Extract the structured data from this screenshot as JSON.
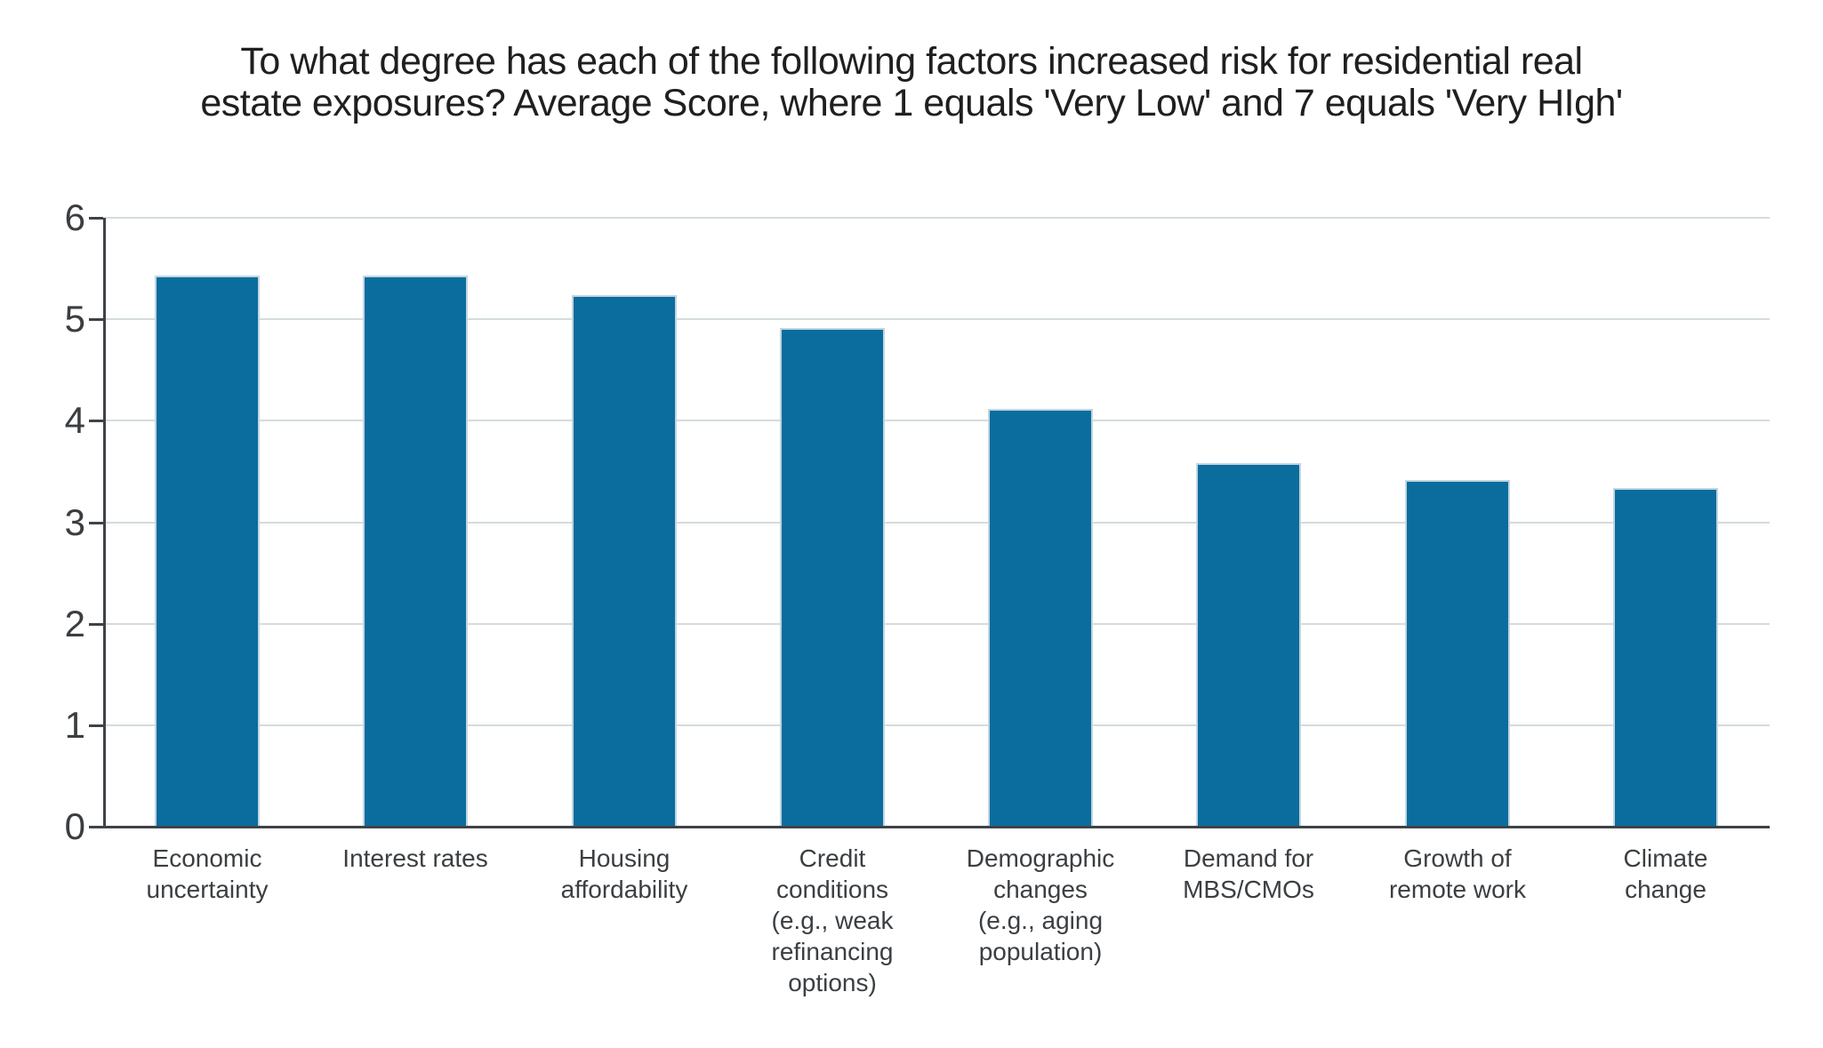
{
  "title": {
    "line1": "To what degree has each of the following factors increased risk for residential real",
    "line2": "estate exposures? Average Score, where 1 equals 'Very Low' and 7 equals 'Very HIgh'"
  },
  "chart_data": {
    "type": "bar",
    "title": "To what degree has each of the following factors increased risk for residential real estate exposures? Average Score, where 1 equals 'Very Low' and 7 equals 'Very HIgh'",
    "categories": [
      "Economic uncertainty",
      "Interest rates",
      "Housing affordability",
      "Credit conditions (e.g., weak refinancing options)",
      "Demographic changes (e.g., aging population)",
      "Demand for MBS/CMOs",
      "Growth of remote work",
      "Climate change"
    ],
    "category_label_lines": [
      "Economic\nuncertainty",
      "Interest rates",
      "Housing\naffordability",
      "Credit\nconditions\n(e.g., weak\nrefinancing\noptions)",
      "Demographic\nchanges\n(e.g., aging\npopulation)",
      "Demand for\nMBS/CMOs",
      "Growth of\nremote work",
      "Climate\nchange"
    ],
    "values": [
      5.43,
      5.43,
      5.24,
      4.91,
      4.12,
      3.58,
      3.42,
      3.34
    ],
    "xlabel": "",
    "ylabel": "",
    "ylim": [
      0,
      6
    ],
    "yticks": [
      0,
      1,
      2,
      3,
      4,
      5,
      6
    ],
    "ytick_labels": [
      "0",
      "1",
      "2",
      "3",
      "4",
      "5",
      "6"
    ],
    "grid": "horizontal gridlines on, ticks every 1",
    "legend": "none",
    "colors": {
      "bar": "#0a6d9e",
      "bar_edge": "#c2d5e0",
      "gridline": "#d4dcdf",
      "axis": "#3f4347",
      "tick_text": "#3a3e41",
      "title_text": "#1f1f1f",
      "background": "#ffffff"
    }
  }
}
